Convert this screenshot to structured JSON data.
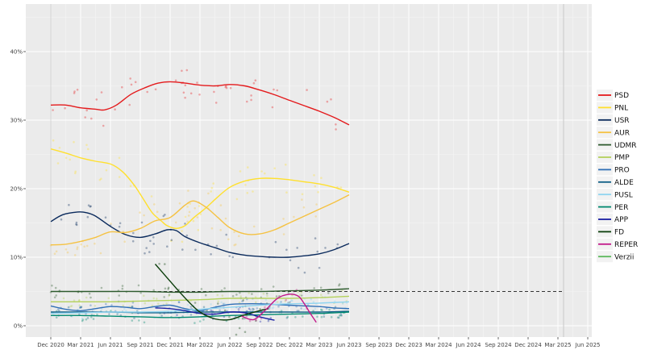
{
  "chart_data": {
    "type": "line",
    "title": "",
    "xlabel": "",
    "ylabel": "",
    "x_ticks": [
      "Dec 2020",
      "Mar 2021",
      "Jun 2021",
      "Sep 2021",
      "Dec 2021",
      "Mar 2022",
      "Jun 2022",
      "Sep 2022",
      "Dec 2022",
      "Mar 2023",
      "Jun 2023",
      "Sep 2023",
      "Dec 2023",
      "Mar 2024",
      "Jun 2024",
      "Sep 2024",
      "Dec 2024",
      "Mar 2025",
      "Jun 2025"
    ],
    "y_ticks": [
      "0%",
      "10%",
      "20%",
      "30%",
      "40%"
    ],
    "ylim": [
      -2,
      47
    ],
    "grid": true,
    "legend_position": "right",
    "reference_line": {
      "value": 5,
      "style": "dashed",
      "x_start": 0,
      "x_end": 17
    },
    "series": [
      {
        "name": "PSD",
        "color": "#e41a1c",
        "points": [
          [
            0,
            32.2
          ],
          [
            0.5,
            32.2
          ],
          [
            1,
            31.8
          ],
          [
            1.5,
            31.6
          ],
          [
            1.8,
            31.5
          ],
          [
            2.2,
            32.2
          ],
          [
            2.7,
            33.8
          ],
          [
            3.2,
            34.8
          ],
          [
            3.6,
            35.4
          ],
          [
            4,
            35.6
          ],
          [
            4.5,
            35.4
          ],
          [
            5,
            35.1
          ],
          [
            5.5,
            35
          ],
          [
            6,
            35.2
          ],
          [
            6.5,
            35
          ],
          [
            7,
            34.4
          ],
          [
            7.5,
            33.7
          ],
          [
            8,
            32.9
          ],
          [
            8.5,
            32.1
          ],
          [
            9,
            31.3
          ],
          [
            9.5,
            30.4
          ],
          [
            10,
            29.3
          ]
        ]
      },
      {
        "name": "PNL",
        "color": "#ffe02e",
        "points": [
          [
            0,
            25.8
          ],
          [
            0.5,
            25.2
          ],
          [
            1,
            24.5
          ],
          [
            1.5,
            24
          ],
          [
            2,
            23.6
          ],
          [
            2.4,
            22.5
          ],
          [
            2.8,
            20.5
          ],
          [
            3.1,
            18.5
          ],
          [
            3.4,
            16.5
          ],
          [
            3.7,
            15.3
          ],
          [
            3.9,
            14.6
          ],
          [
            4.2,
            14.2
          ],
          [
            4.5,
            14.6
          ],
          [
            4.8,
            15.8
          ],
          [
            5.2,
            17.2
          ],
          [
            5.6,
            18.8
          ],
          [
            6,
            20.2
          ],
          [
            6.5,
            21.1
          ],
          [
            7,
            21.5
          ],
          [
            7.5,
            21.5
          ],
          [
            8,
            21.3
          ],
          [
            8.5,
            21
          ],
          [
            9,
            20.7
          ],
          [
            9.5,
            20.2
          ],
          [
            10,
            19.5
          ]
        ]
      },
      {
        "name": "USR",
        "color": "#0a2a5c",
        "points": [
          [
            0,
            15.2
          ],
          [
            0.4,
            16.2
          ],
          [
            0.9,
            16.6
          ],
          [
            1.2,
            16.5
          ],
          [
            1.5,
            16
          ],
          [
            2,
            14.5
          ],
          [
            2.5,
            13.3
          ],
          [
            3,
            12.9
          ],
          [
            3.5,
            13.4
          ],
          [
            3.9,
            14
          ],
          [
            4.2,
            13.9
          ],
          [
            4.5,
            13
          ],
          [
            5,
            12.1
          ],
          [
            5.5,
            11.4
          ],
          [
            6,
            10.7
          ],
          [
            6.5,
            10.3
          ],
          [
            7,
            10.1
          ],
          [
            7.5,
            10
          ],
          [
            8,
            10
          ],
          [
            8.5,
            10.2
          ],
          [
            9,
            10.5
          ],
          [
            9.5,
            11.1
          ],
          [
            10,
            12
          ]
        ]
      },
      {
        "name": "AUR",
        "color": "#f5c242",
        "points": [
          [
            0,
            11.8
          ],
          [
            0.5,
            11.9
          ],
          [
            1,
            12.3
          ],
          [
            1.5,
            12.9
          ],
          [
            2,
            13.7
          ],
          [
            2.5,
            13.6
          ],
          [
            3,
            14.2
          ],
          [
            3.5,
            15.3
          ],
          [
            4,
            15.8
          ],
          [
            4.5,
            17.6
          ],
          [
            4.8,
            18.2
          ],
          [
            5.2,
            17.3
          ],
          [
            5.6,
            15.8
          ],
          [
            6,
            14.3
          ],
          [
            6.5,
            13.4
          ],
          [
            7,
            13.4
          ],
          [
            7.5,
            14
          ],
          [
            8,
            15
          ],
          [
            8.5,
            16
          ],
          [
            9,
            17
          ],
          [
            9.5,
            18
          ],
          [
            10,
            19.1
          ]
        ]
      },
      {
        "name": "UDMR",
        "color": "#2e5b2e",
        "points": [
          [
            0,
            5
          ],
          [
            1,
            5
          ],
          [
            2,
            5
          ],
          [
            3,
            5
          ],
          [
            4,
            4.9
          ],
          [
            5,
            4.9
          ],
          [
            6,
            5
          ],
          [
            7,
            5
          ],
          [
            8,
            5.1
          ],
          [
            9,
            5.2
          ],
          [
            10,
            5.4
          ]
        ]
      },
      {
        "name": "PMP",
        "color": "#b4d15c",
        "points": [
          [
            0,
            3.5
          ],
          [
            1,
            3.5
          ],
          [
            2,
            3.5
          ],
          [
            3,
            3.6
          ],
          [
            4,
            3.7
          ],
          [
            5,
            3.8
          ],
          [
            6,
            4
          ],
          [
            7,
            4
          ],
          [
            8,
            4
          ],
          [
            9,
            4.1
          ],
          [
            10,
            4.3
          ]
        ]
      },
      {
        "name": "PRO",
        "color": "#2f6fb6",
        "points": [
          [
            0,
            2.9
          ],
          [
            0.5,
            2.4
          ],
          [
            1,
            2.2
          ],
          [
            1.5,
            2.5
          ],
          [
            2,
            2.8
          ],
          [
            2.5,
            2.7
          ],
          [
            3,
            2.5
          ],
          [
            3.5,
            2.8
          ],
          [
            4,
            3
          ],
          [
            4.5,
            2.5
          ],
          [
            5,
            2.2
          ],
          [
            5.5,
            2.7
          ],
          [
            6,
            3.1
          ],
          [
            6.5,
            3.2
          ],
          [
            7,
            3.2
          ],
          [
            7.5,
            3.1
          ],
          [
            8,
            3
          ],
          [
            8.5,
            2.9
          ],
          [
            9,
            2.8
          ],
          [
            9.5,
            2.6
          ],
          [
            10,
            2.5
          ]
        ]
      },
      {
        "name": "ALDE",
        "color": "#0f5f86",
        "points": [
          [
            0,
            2
          ],
          [
            1,
            2
          ],
          [
            2,
            2
          ],
          [
            3,
            1.9
          ],
          [
            4,
            1.9
          ],
          [
            5,
            2
          ],
          [
            6,
            2
          ],
          [
            7,
            2
          ],
          [
            8,
            2
          ],
          [
            9,
            2
          ],
          [
            10,
            2.1
          ]
        ]
      },
      {
        "name": "PUSL",
        "color": "#8fd4f0",
        "points": [
          [
            0,
            1.8
          ],
          [
            1,
            1.9
          ],
          [
            2,
            2
          ],
          [
            3,
            2
          ],
          [
            4,
            2.1
          ],
          [
            5,
            2.4
          ],
          [
            6,
            2.7
          ],
          [
            7,
            3
          ],
          [
            8,
            3.2
          ],
          [
            9,
            3.3
          ],
          [
            10,
            3.5
          ]
        ]
      },
      {
        "name": "PER",
        "color": "#00896f",
        "points": [
          [
            0,
            1.5
          ],
          [
            1,
            1.5
          ],
          [
            2,
            1.4
          ],
          [
            3,
            1.3
          ],
          [
            4,
            1.2
          ],
          [
            5,
            1.3
          ],
          [
            6,
            1.5
          ],
          [
            7,
            1.6
          ],
          [
            8,
            1.7
          ],
          [
            9,
            1.8
          ],
          [
            10,
            2
          ]
        ]
      },
      {
        "name": "APP",
        "color": "#1a1fa3",
        "points": [
          [
            3.5,
            2.6
          ],
          [
            4,
            2.5
          ],
          [
            4.5,
            2.2
          ],
          [
            5,
            1.8
          ],
          [
            5.5,
            1.7
          ],
          [
            6,
            2
          ],
          [
            6.5,
            1.9
          ],
          [
            7,
            1.3
          ],
          [
            7.5,
            0.8
          ]
        ]
      },
      {
        "name": "FD",
        "color": "#0a3d0a",
        "points": [
          [
            3.5,
            9
          ],
          [
            3.8,
            7.5
          ],
          [
            4.2,
            5.5
          ],
          [
            4.6,
            3.6
          ],
          [
            5,
            2
          ],
          [
            5.5,
            1
          ],
          [
            6,
            0.9
          ],
          [
            6.5,
            1.6
          ],
          [
            7,
            2.2
          ],
          [
            7.3,
            2.5
          ]
        ]
      },
      {
        "name": "REPER",
        "color": "#c2188a",
        "points": [
          [
            6.4,
            1.4
          ],
          [
            6.8,
            0.9
          ],
          [
            7.2,
            2.3
          ],
          [
            7.6,
            4
          ],
          [
            8,
            4.6
          ],
          [
            8.3,
            4.3
          ],
          [
            8.5,
            3.2
          ],
          [
            8.7,
            1.8
          ],
          [
            8.9,
            0.5
          ]
        ]
      },
      {
        "name": "Verzii",
        "color": "#5cb85c",
        "points": []
      }
    ]
  }
}
